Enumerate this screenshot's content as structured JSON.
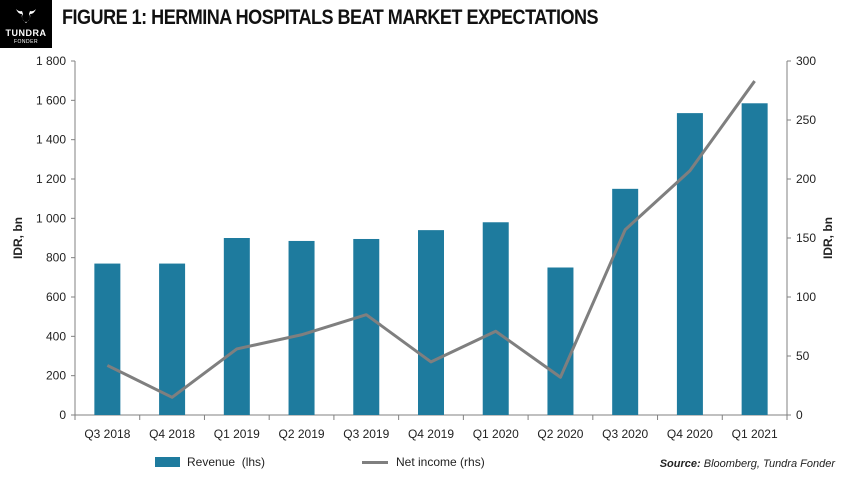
{
  "logo": {
    "name": "TUNDRA",
    "subtitle": "FONDER"
  },
  "title": "FIGURE 1: HERMINA HOSPITALS BEAT MARKET EXPECTATIONS",
  "source": {
    "label": "Source:",
    "text": "Bloomberg, Tundra Fonder"
  },
  "colors": {
    "bar": "#1E7B9E",
    "line": "#7F7F7F",
    "axis": "#808080"
  },
  "chart_data": {
    "type": "bar",
    "categories": [
      "Q3 2018",
      "Q4 2018",
      "Q1 2019",
      "Q2 2019",
      "Q3 2019",
      "Q4 2019",
      "Q1 2020",
      "Q2 2020",
      "Q3 2020",
      "Q4 2020",
      "Q1 2021"
    ],
    "series": [
      {
        "name": "Revenue  (lhs)",
        "type": "bar",
        "axis": "left",
        "values": [
          770,
          770,
          900,
          885,
          895,
          940,
          980,
          750,
          1150,
          1535,
          1585
        ]
      },
      {
        "name": "Net income (rhs)",
        "type": "line",
        "axis": "right",
        "values": [
          42,
          15,
          56,
          68,
          85,
          45,
          71,
          32,
          157,
          207,
          283
        ]
      }
    ],
    "ylabel": "IDR, bn",
    "y2label": "IDR, bn",
    "ylim": [
      0,
      1800
    ],
    "y2lim": [
      0,
      300
    ],
    "yticks": [
      "0",
      "200",
      "400",
      "600",
      "800",
      "1 000",
      "1 200",
      "1 400",
      "1 600",
      "1 800"
    ],
    "y2ticks": [
      "0",
      "50",
      "100",
      "150",
      "200",
      "250",
      "300"
    ],
    "grid": false,
    "legend": "bottom"
  }
}
